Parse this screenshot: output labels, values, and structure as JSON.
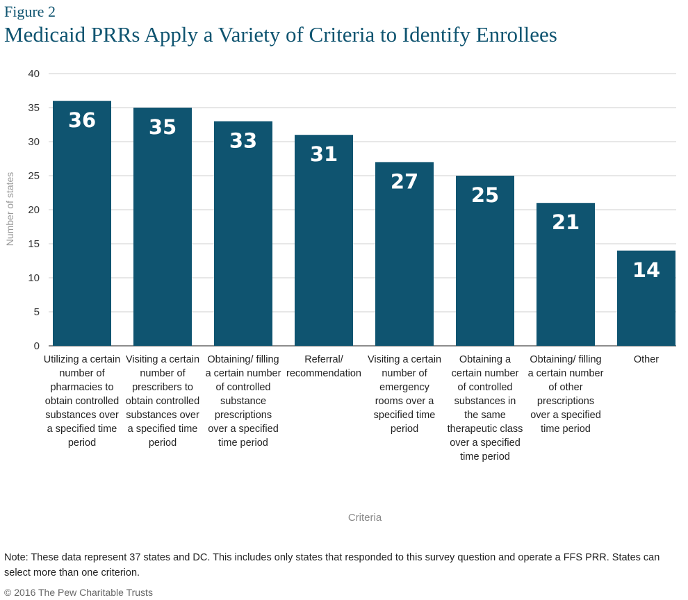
{
  "figure_label": "Figure 2",
  "title": "Medicaid PRRs Apply a Variety of Criteria to Identify Enrollees",
  "note": "Note: These data represent 37 states and DC. This includes only states that responded to this survey question and operate a FFS PRR. States can select more than one criterion.",
  "copyright": "© 2016 The Pew Charitable Trusts",
  "colors": {
    "bar": "#0f5470",
    "grid": "#cfcfcf",
    "axis": "#666666"
  },
  "chart_data": {
    "type": "bar",
    "xlabel": "Criteria",
    "ylabel": "Number of states",
    "ylim": [
      0,
      40
    ],
    "yticks": [
      0,
      5,
      10,
      15,
      20,
      25,
      30,
      35,
      40
    ],
    "grid": true,
    "categories": [
      "Utilizing a certain number of pharmacies to obtain controlled substances over a specified time period",
      "Visiting a certain number of prescribers to obtain controlled substances over a specified time period",
      "Obtaining/ filling a certain number of controlled substance prescriptions over a specified time period",
      "Referral/ recommendation",
      "Visiting a certain number of emergency rooms over a specified time period",
      "Obtaining a certain number of controlled substances in the same therapeutic class over a specified time period",
      "Obtaining/ filling a certain number of other prescriptions over a specified time period",
      "Other"
    ],
    "values": [
      36,
      35,
      33,
      31,
      27,
      25,
      21,
      14
    ],
    "data_labels": [
      "36",
      "35",
      "33",
      "31",
      "27",
      "25",
      "21",
      "14"
    ]
  }
}
